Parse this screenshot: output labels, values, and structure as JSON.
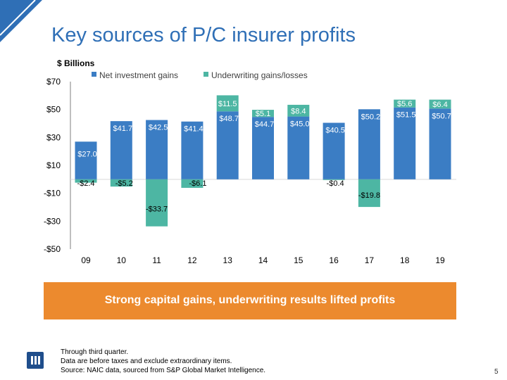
{
  "slide": {
    "title": "Key sources of P/C insurer profits",
    "page_number": "5"
  },
  "banner": {
    "text": "Strong capital gains, underwriting results lifted profits",
    "color": "#ec8a2e"
  },
  "footnotes": [
    "Through third quarter.",
    "Data are before taxes and exclude extraordinary items.",
    "Source: NAIC data, sourced from S&P Global Market Intelligence."
  ],
  "logo": {
    "icon": "iii-logo-icon"
  },
  "colors": {
    "accent": "#2f6fb6",
    "net_investment": "#3b7dc4",
    "underwriting": "#4db6a3"
  },
  "chart_data": {
    "type": "bar",
    "stacked": true,
    "unit_label": "$ Billions",
    "categories": [
      "09",
      "10",
      "11",
      "12",
      "13",
      "14",
      "15",
      "16",
      "17",
      "18",
      "19"
    ],
    "ylim": [
      -50,
      70
    ],
    "yticks": [
      70,
      50,
      30,
      10,
      -10,
      -30,
      -50
    ],
    "ytick_labels": [
      "$70",
      "$50",
      "$30",
      "$10",
      "-$10",
      "-$30",
      "-$50"
    ],
    "series": [
      {
        "name": "Net investment gains",
        "color": "#3b7dc4",
        "values": [
          27.0,
          41.7,
          42.5,
          41.4,
          48.7,
          44.7,
          45.0,
          40.5,
          50.2,
          51.5,
          50.7
        ],
        "labels": [
          "$27.0",
          "$41.7",
          "$42.5",
          "$41.4",
          "$48.7",
          "$44.7",
          "$45.0",
          "$40.5",
          "$50.2",
          "$51.5",
          "$50.7"
        ]
      },
      {
        "name": "Underwriting gains/losses",
        "color": "#4db6a3",
        "values": [
          -2.4,
          -5.2,
          -33.7,
          -6.1,
          11.5,
          5.1,
          8.4,
          -0.4,
          -19.8,
          5.6,
          6.4
        ],
        "labels": [
          "-$2.4",
          "-$5.2",
          "-$33.7",
          "-$6.1",
          "$11.5",
          "$5.1",
          "$8.4",
          "-$0.4",
          "-$19.8",
          "$5.6",
          "$6.4"
        ]
      }
    ],
    "legend_position": "top",
    "grid": false
  }
}
